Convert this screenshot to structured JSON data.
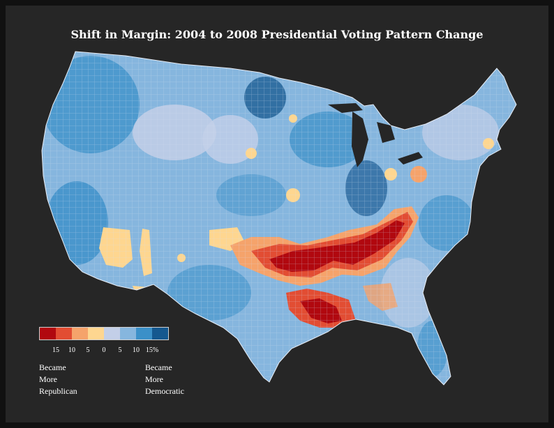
{
  "title": "Shift in Margin: 2004 to 2008 Presidential Voting Pattern Change",
  "colors": {
    "background": "#262626",
    "rep15": "#b1080f",
    "rep10": "#e24d33",
    "rep5": "#f5a36b",
    "rep0": "#fed690",
    "dem5": "#c3cfe8",
    "dem10": "#86b6de",
    "dem15": "#3b90c8",
    "dem15plus": "#15588f"
  },
  "legend": {
    "swatches": [
      "#b1080f",
      "#e24d33",
      "#f5a36b",
      "#fed690",
      "#c3cfe8",
      "#86b6de",
      "#3b90c8",
      "#15588f"
    ],
    "ticks": [
      "15",
      "10",
      "5",
      "0",
      "5",
      "10",
      "15%"
    ],
    "left_caption": [
      "Became",
      "More",
      "Republican"
    ],
    "right_caption": [
      "Became",
      "More",
      "Democratic"
    ]
  }
}
